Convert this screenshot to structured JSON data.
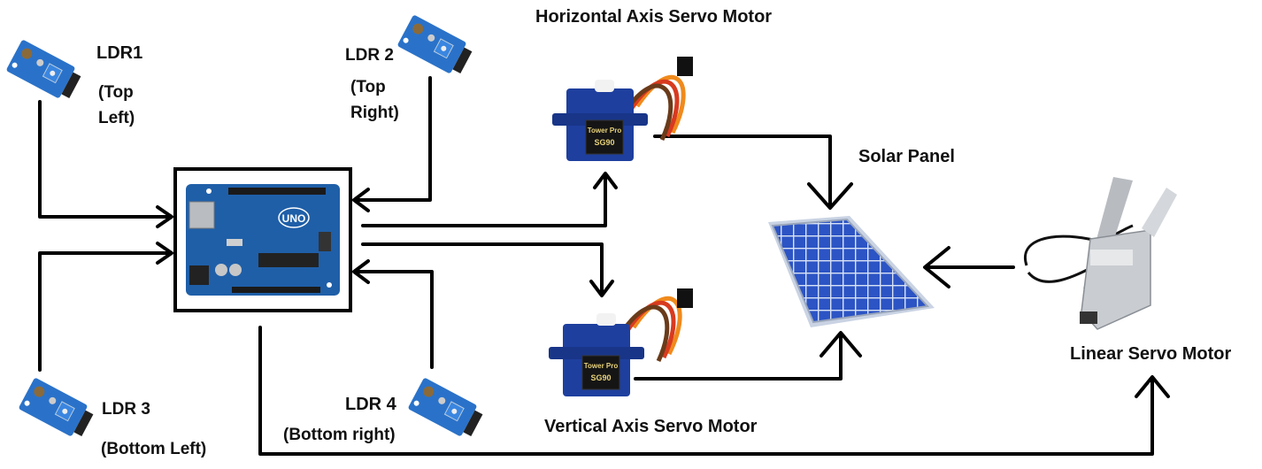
{
  "labels": {
    "ldr1": "LDR1",
    "ldr1_pos_line1": "(Top",
    "ldr1_pos_line2": "Left)",
    "ldr2": "LDR 2",
    "ldr2_pos_line1": "(Top",
    "ldr2_pos_line2": "Right)",
    "ldr3": "LDR 3",
    "ldr3_pos": "(Bottom Left)",
    "ldr4": "LDR 4",
    "ldr4_pos": "(Bottom right)",
    "horizontal_servo": "Horizontal Axis Servo Motor",
    "vertical_servo": "Vertical Axis Servo Motor",
    "solar_panel": "Solar Panel",
    "linear_servo": "Linear Servo Motor",
    "arduino_logo": "UNO",
    "servo_brand": "Tower Pro",
    "servo_model": "SG90"
  },
  "colors": {
    "line": "#000000",
    "pcb": "#1f5fa8",
    "servo_body": "#1e3f9e",
    "sensor_board": "#2a72c9",
    "solar_cell": "#2c54c4",
    "actuator": "#c9ccd0",
    "wire_orange": "#f08a1c",
    "wire_red": "#d83a1f",
    "wire_brown": "#6a3b1a"
  }
}
